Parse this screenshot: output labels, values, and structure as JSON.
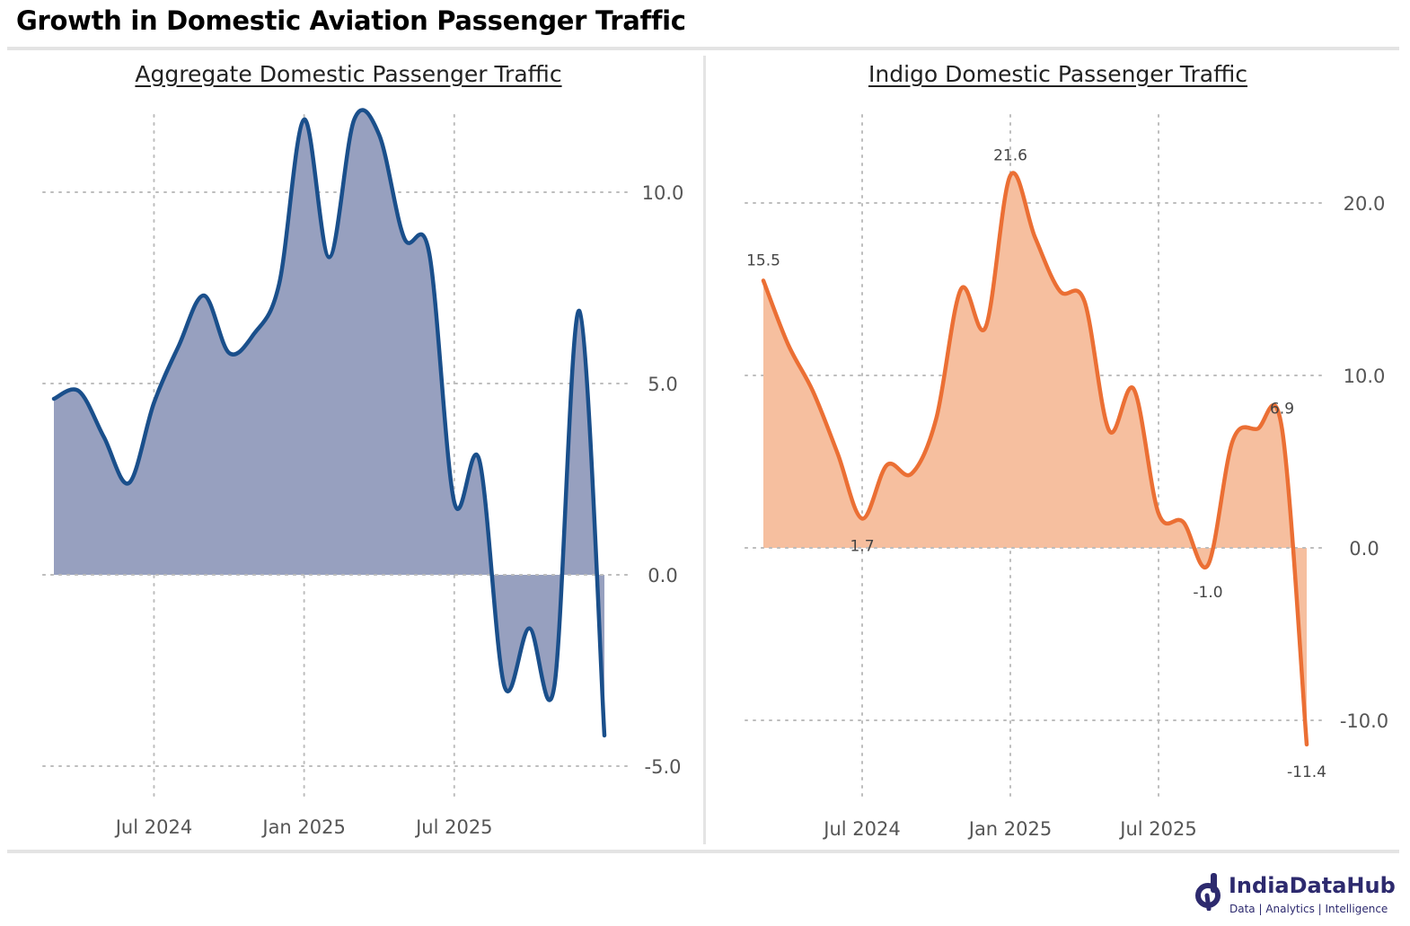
{
  "title": "Growth in Domestic Aviation Passenger Traffic",
  "brand": {
    "name": "IndiaDataHub",
    "tagline": "Data | Analytics | Intelligence",
    "logo_icon": "india-data-hub-logo",
    "color": "#2d2a6e"
  },
  "chart_data": [
    {
      "type": "area",
      "title": "Aggregate Domestic Passenger Traffic",
      "xlabel": "",
      "ylabel": "",
      "x": [
        "2024-03",
        "2024-04",
        "2024-05",
        "2024-06",
        "2024-07",
        "2024-08",
        "2024-09",
        "2024-10",
        "2024-11",
        "2024-12",
        "2025-01",
        "2025-02",
        "2025-03",
        "2025-04",
        "2025-05",
        "2025-06",
        "2025-07",
        "2025-08",
        "2025-09",
        "2025-10",
        "2025-11",
        "2025-12",
        "2026-01"
      ],
      "series": [
        {
          "values": [
            4.6,
            4.8,
            3.6,
            2.4,
            4.5,
            6.0,
            7.3,
            5.8,
            6.3,
            7.6,
            11.9,
            8.3,
            11.9,
            11.5,
            8.8,
            8.4,
            1.9,
            3.0,
            -2.9,
            -1.4,
            -2.9,
            6.9,
            -4.2
          ],
          "color": "#1a4f8b",
          "fill": "#97a0bf"
        }
      ],
      "xticks": [
        "Jul 2024",
        "Jan 2025",
        "Jul 2025"
      ],
      "xtick_dates": [
        "2024-07",
        "2025-01",
        "2025-07"
      ],
      "yticks": [
        10.0,
        5.0,
        0.0,
        -5.0
      ],
      "ytick_labels": [
        "10.0",
        "5.0",
        "0.0",
        "-5.0"
      ],
      "ylim": [
        -5.6,
        12.2
      ],
      "grid": true,
      "legend": "none",
      "data_labels": []
    },
    {
      "type": "area",
      "title": "Indigo Domestic Passenger Traffic",
      "xlabel": "",
      "ylabel": "",
      "x": [
        "2024-03",
        "2024-04",
        "2024-05",
        "2024-06",
        "2024-07",
        "2024-08",
        "2024-09",
        "2024-10",
        "2024-11",
        "2024-12",
        "2025-01",
        "2025-02",
        "2025-03",
        "2025-04",
        "2025-05",
        "2025-06",
        "2025-07",
        "2025-08",
        "2025-09",
        "2025-10",
        "2025-11",
        "2025-12",
        "2026-01"
      ],
      "series": [
        {
          "values": [
            15.5,
            11.8,
            9.1,
            5.5,
            1.7,
            4.8,
            4.3,
            7.5,
            15.0,
            12.8,
            21.6,
            18.0,
            14.9,
            14.3,
            6.8,
            9.2,
            2.0,
            1.5,
            -1.0,
            6.2,
            6.9,
            6.9,
            -11.4
          ],
          "color": "#eb6f34",
          "fill": "#f6bf9f"
        }
      ],
      "xticks": [
        "Jul 2024",
        "Jan 2025",
        "Jul 2025"
      ],
      "xtick_dates": [
        "2024-07",
        "2025-01",
        "2025-07"
      ],
      "yticks": [
        20.0,
        10.0,
        0.0,
        -10.0
      ],
      "ytick_labels": [
        "20.0",
        "10.0",
        "0.0",
        "-10.0"
      ],
      "ylim": [
        -12.6,
        25.0
      ],
      "grid": true,
      "legend": "none",
      "data_labels": [
        {
          "index": 0,
          "text": "15.5",
          "position": "above"
        },
        {
          "index": 4,
          "text": "1.7",
          "position": "below"
        },
        {
          "index": 10,
          "text": "21.6",
          "position": "above"
        },
        {
          "index": 18,
          "text": "-1.0",
          "position": "below"
        },
        {
          "index": 21,
          "text": "6.9",
          "position": "above"
        },
        {
          "index": 22,
          "text": "-11.4",
          "position": "below"
        }
      ]
    }
  ]
}
